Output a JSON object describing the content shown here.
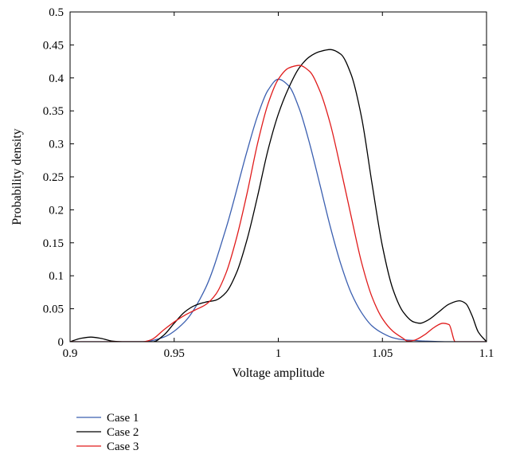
{
  "chart_data": {
    "type": "line",
    "title": "",
    "xlabel": "Voltage amplitude",
    "ylabel": "Probability density",
    "xlim": [
      0.9,
      1.1
    ],
    "ylim": [
      0,
      0.5
    ],
    "xticks": [
      0.9,
      0.95,
      1,
      1.05,
      1.1
    ],
    "xtick_labels": [
      "0.9",
      "0.95",
      "1",
      "1.05",
      "1.1"
    ],
    "yticks": [
      0,
      0.05,
      0.1,
      0.15,
      0.2,
      0.25,
      0.3,
      0.35,
      0.4,
      0.45,
      0.5
    ],
    "ytick_labels": [
      "0",
      "0.05",
      "0.1",
      "0.15",
      "0.2",
      "0.25",
      "0.3",
      "0.35",
      "0.4",
      "0.45",
      "0.5"
    ],
    "grid": false,
    "legend_position": "below-left",
    "series": [
      {
        "name": "Case 1",
        "color": "#3b5fb0",
        "x": [
          0.9,
          0.92,
          0.935,
          0.945,
          0.955,
          0.965,
          0.975,
          0.985,
          0.99,
          0.995,
          1.0,
          1.005,
          1.01,
          1.015,
          1.02,
          1.025,
          1.03,
          1.035,
          1.04,
          1.045,
          1.05,
          1.055,
          1.06,
          1.065,
          1.07,
          1.08,
          1.1
        ],
        "y": [
          0,
          0,
          0,
          0.007,
          0.03,
          0.081,
          0.173,
          0.289,
          0.342,
          0.381,
          0.398,
          0.388,
          0.354,
          0.301,
          0.238,
          0.174,
          0.118,
          0.074,
          0.044,
          0.024,
          0.013,
          0.006,
          0.003,
          0.002,
          0.001,
          0,
          0
        ]
      },
      {
        "name": "Case 2",
        "color": "#000000",
        "x": [
          0.9,
          0.905,
          0.91,
          0.915,
          0.92,
          0.925,
          0.93,
          0.94,
          0.945,
          0.95,
          0.955,
          0.96,
          0.965,
          0.97,
          0.975,
          0.98,
          0.985,
          0.99,
          0.995,
          1.0,
          1.005,
          1.01,
          1.015,
          1.02,
          1.025,
          1.03,
          1.035,
          1.04,
          1.045,
          1.05,
          1.055,
          1.06,
          1.065,
          1.068,
          1.072,
          1.077,
          1.082,
          1.087,
          1.09,
          1.093,
          1.096,
          1.1
        ],
        "y": [
          0,
          0.005,
          0.007,
          0.005,
          0.001,
          0,
          0,
          0,
          0.01,
          0.028,
          0.045,
          0.055,
          0.06,
          0.063,
          0.075,
          0.105,
          0.155,
          0.22,
          0.29,
          0.345,
          0.385,
          0.415,
          0.432,
          0.44,
          0.443,
          0.436,
          0.405,
          0.34,
          0.24,
          0.145,
          0.08,
          0.045,
          0.03,
          0.028,
          0.033,
          0.045,
          0.057,
          0.062,
          0.058,
          0.04,
          0.015,
          0
        ]
      },
      {
        "name": "Case 3",
        "color": "#e01b1b",
        "x": [
          0.9,
          0.935,
          0.939,
          0.945,
          0.95,
          0.955,
          0.96,
          0.965,
          0.97,
          0.975,
          0.98,
          0.985,
          0.99,
          0.995,
          1.0,
          1.005,
          1.01,
          1.015,
          1.02,
          1.025,
          1.03,
          1.035,
          1.04,
          1.045,
          1.05,
          1.055,
          1.06,
          1.062,
          1.065,
          1.07,
          1.075,
          1.079,
          1.082,
          1.085,
          1.1
        ],
        "y": [
          0,
          0,
          0.003,
          0.018,
          0.03,
          0.04,
          0.048,
          0.056,
          0.072,
          0.105,
          0.158,
          0.225,
          0.3,
          0.36,
          0.398,
          0.415,
          0.419,
          0.41,
          0.38,
          0.33,
          0.262,
          0.19,
          0.12,
          0.068,
          0.035,
          0.016,
          0.005,
          0.001,
          0.002,
          0.01,
          0.022,
          0.028,
          0.026,
          0,
          0
        ]
      }
    ]
  }
}
